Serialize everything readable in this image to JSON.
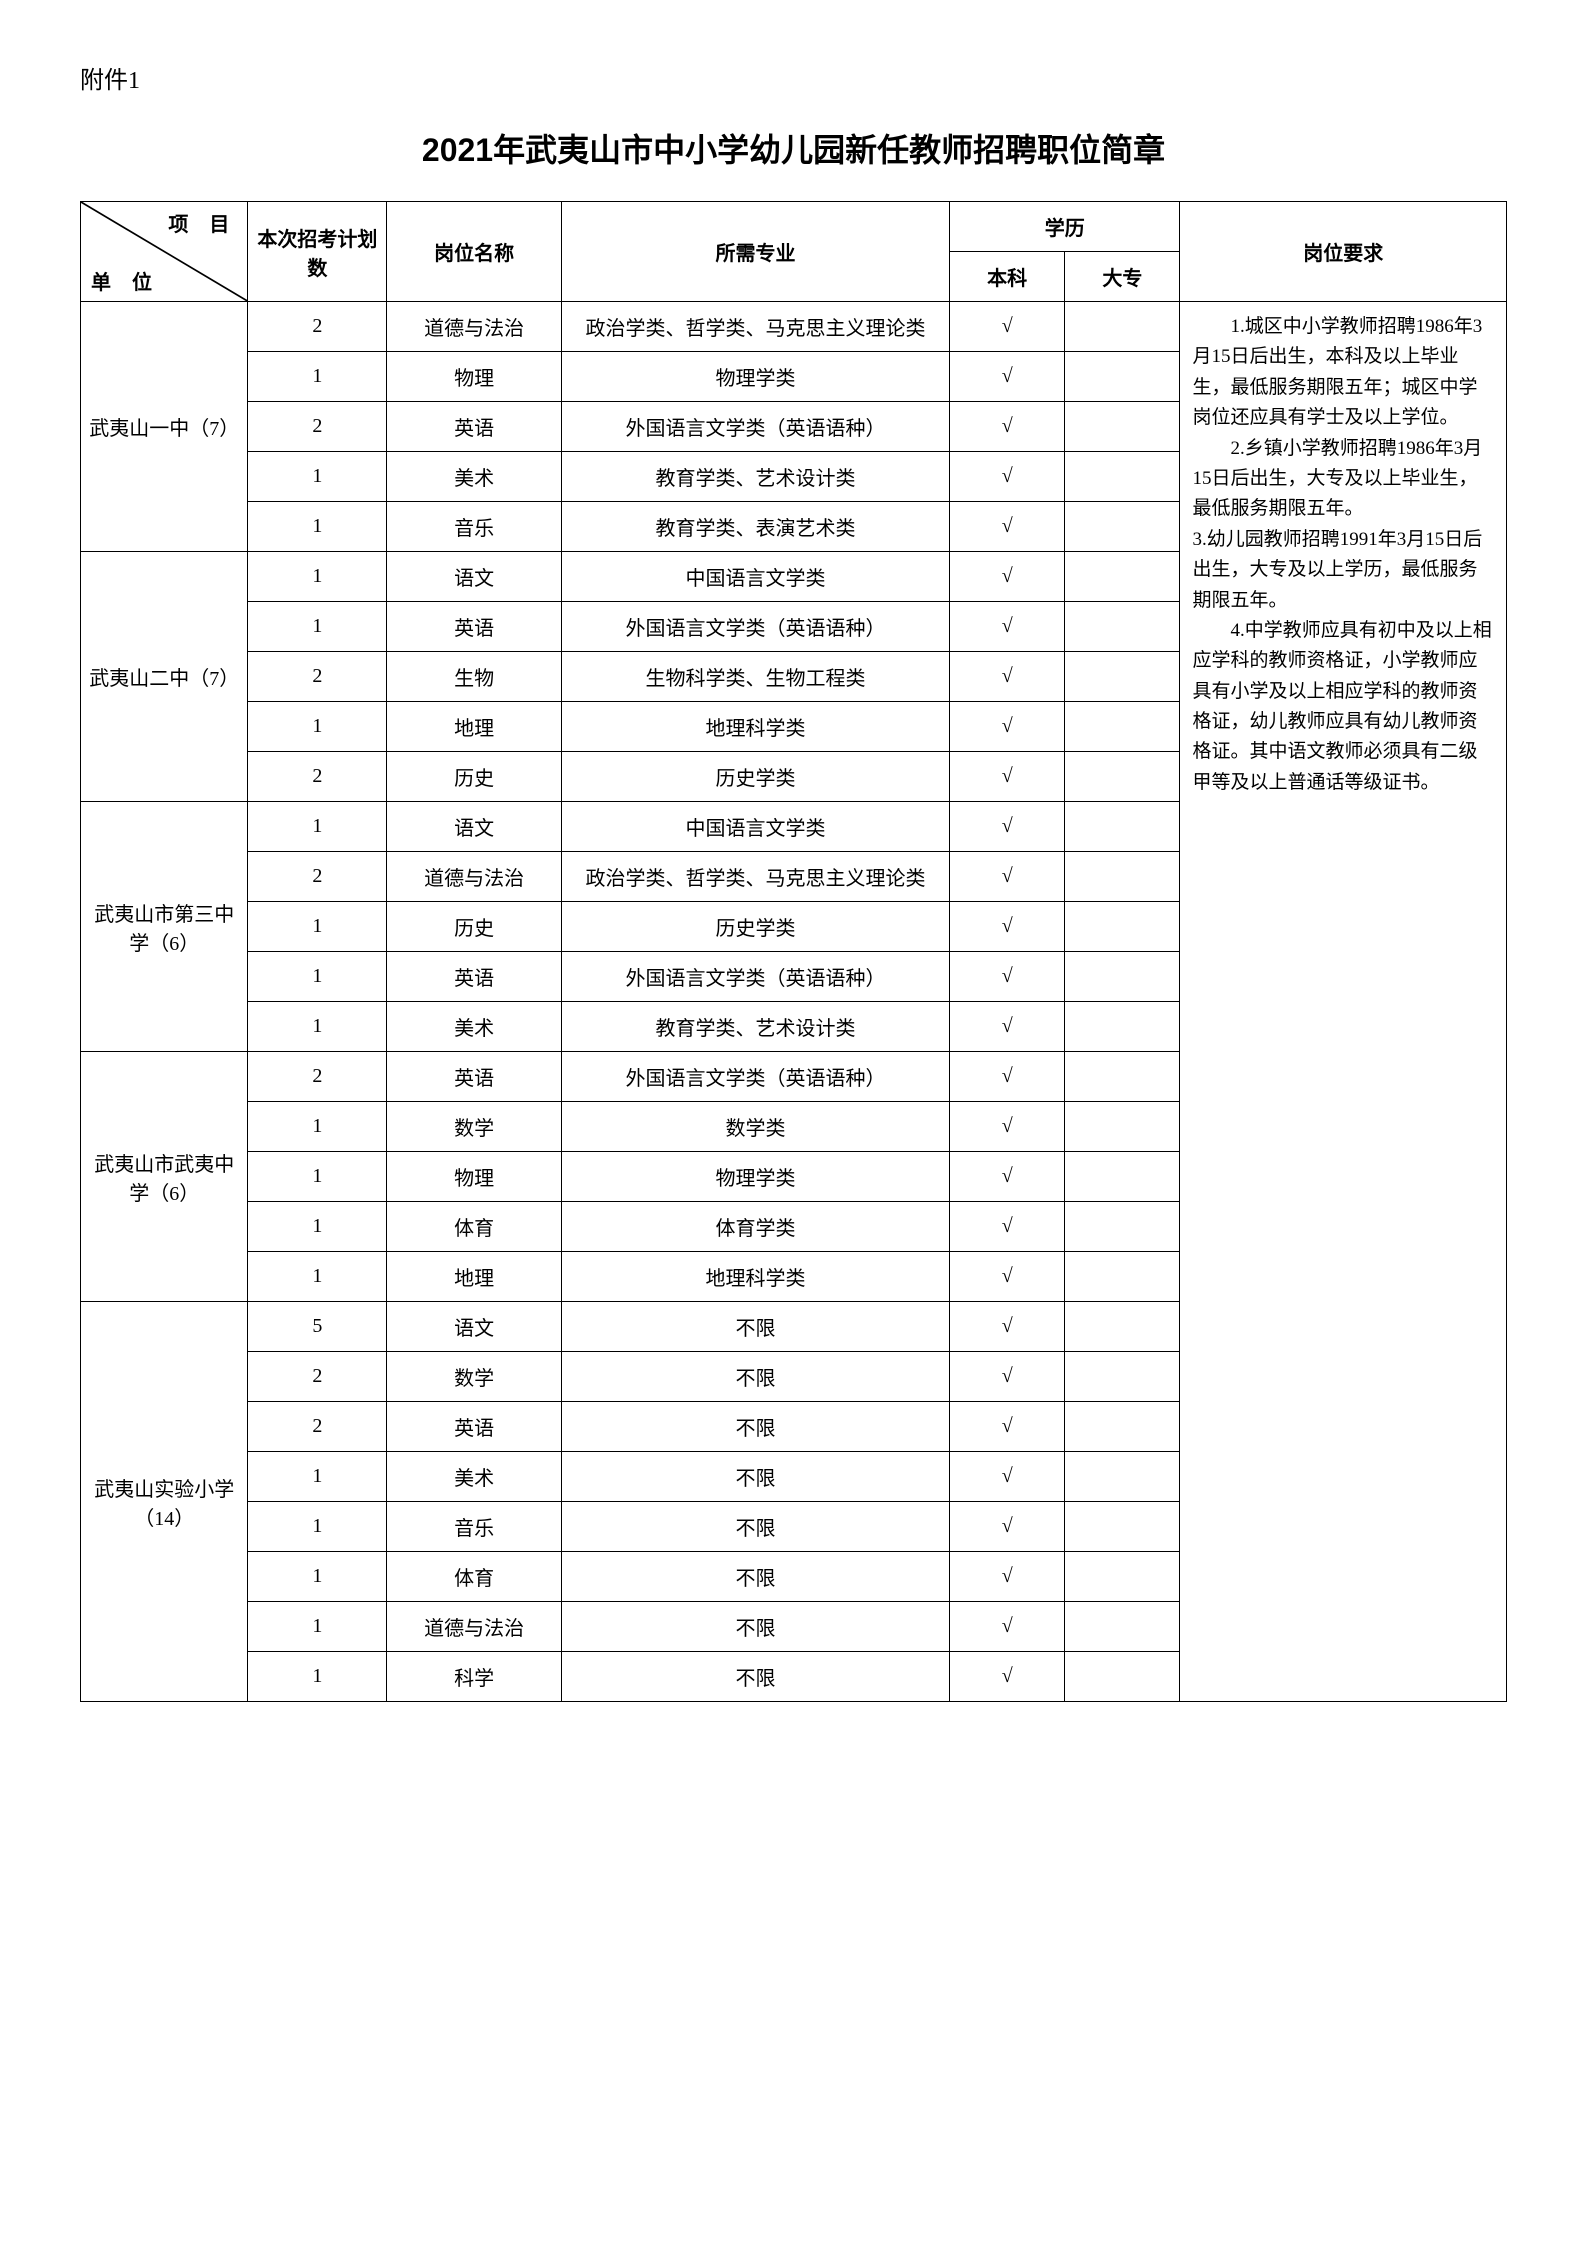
{
  "attachment": "附件1",
  "title": "2021年武夷山市中小学幼儿园新任教师招聘职位简章",
  "header": {
    "diag_top": "项 目",
    "diag_bottom": "单 位",
    "count": "本次招考计划数",
    "post": "岗位名称",
    "major": "所需专业",
    "edu": "学历",
    "bachelor": "本科",
    "college": "大专",
    "req": "岗位要求"
  },
  "check": "√",
  "units": [
    {
      "name": "武夷山一中（7）",
      "rows": [
        {
          "count": "2",
          "post": "道德与法治",
          "major": "政治学类、哲学类、马克思主义理论类",
          "b": "√",
          "c": ""
        },
        {
          "count": "1",
          "post": "物理",
          "major": "物理学类",
          "b": "√",
          "c": ""
        },
        {
          "count": "2",
          "post": "英语",
          "major": "外国语言文学类（英语语种）",
          "b": "√",
          "c": ""
        },
        {
          "count": "1",
          "post": "美术",
          "major": "教育学类、艺术设计类",
          "b": "√",
          "c": ""
        },
        {
          "count": "1",
          "post": "音乐",
          "major": "教育学类、表演艺术类",
          "b": "√",
          "c": ""
        }
      ]
    },
    {
      "name": "武夷山二中（7）",
      "rows": [
        {
          "count": "1",
          "post": "语文",
          "major": "中国语言文学类",
          "b": "√",
          "c": ""
        },
        {
          "count": "1",
          "post": "英语",
          "major": "外国语言文学类（英语语种）",
          "b": "√",
          "c": ""
        },
        {
          "count": "2",
          "post": "生物",
          "major": "生物科学类、生物工程类",
          "b": "√",
          "c": ""
        },
        {
          "count": "1",
          "post": "地理",
          "major": "地理科学类",
          "b": "√",
          "c": ""
        },
        {
          "count": "2",
          "post": "历史",
          "major": "历史学类",
          "b": "√",
          "c": ""
        }
      ]
    },
    {
      "name": "武夷山市第三中学（6）",
      "rows": [
        {
          "count": "1",
          "post": "语文",
          "major": "中国语言文学类",
          "b": "√",
          "c": ""
        },
        {
          "count": "2",
          "post": "道德与法治",
          "major": "政治学类、哲学类、马克思主义理论类",
          "b": "√",
          "c": ""
        },
        {
          "count": "1",
          "post": "历史",
          "major": "历史学类",
          "b": "√",
          "c": ""
        },
        {
          "count": "1",
          "post": "英语",
          "major": "外国语言文学类（英语语种）",
          "b": "√",
          "c": ""
        },
        {
          "count": "1",
          "post": "美术",
          "major": "教育学类、艺术设计类",
          "b": "√",
          "c": ""
        }
      ]
    },
    {
      "name": "武夷山市武夷中学（6）",
      "rows": [
        {
          "count": "2",
          "post": "英语",
          "major": "外国语言文学类（英语语种）",
          "b": "√",
          "c": ""
        },
        {
          "count": "1",
          "post": "数学",
          "major": "数学类",
          "b": "√",
          "c": ""
        },
        {
          "count": "1",
          "post": "物理",
          "major": "物理学类",
          "b": "√",
          "c": ""
        },
        {
          "count": "1",
          "post": "体育",
          "major": "体育学类",
          "b": "√",
          "c": ""
        },
        {
          "count": "1",
          "post": "地理",
          "major": "地理科学类",
          "b": "√",
          "c": ""
        }
      ]
    },
    {
      "name": "武夷山实验小学（14）",
      "rows": [
        {
          "count": "5",
          "post": "语文",
          "major": "不限",
          "b": "√",
          "c": ""
        },
        {
          "count": "2",
          "post": "数学",
          "major": "不限",
          "b": "√",
          "c": ""
        },
        {
          "count": "2",
          "post": "英语",
          "major": "不限",
          "b": "√",
          "c": ""
        },
        {
          "count": "1",
          "post": "美术",
          "major": "不限",
          "b": "√",
          "c": ""
        },
        {
          "count": "1",
          "post": "音乐",
          "major": "不限",
          "b": "√",
          "c": ""
        },
        {
          "count": "1",
          "post": "体育",
          "major": "不限",
          "b": "√",
          "c": ""
        },
        {
          "count": "1",
          "post": "道德与法治",
          "major": "不限",
          "b": "√",
          "c": ""
        },
        {
          "count": "1",
          "post": "科学",
          "major": "不限",
          "b": "√",
          "c": ""
        }
      ]
    }
  ],
  "requirements": {
    "p1": "1.城区中小学教师招聘1986年3月15日后出生，本科及以上毕业生，最低服务期限五年；城区中学岗位还应具有学士及以上学位。",
    "p2": "2.乡镇小学教师招聘1986年3月15日后出生，大专及以上毕业生，最低服务期限五年。",
    "p3a": "3.幼儿园教师招聘1991年3月15日后出生，大专及以上学历，最低服务期限五年。",
    "p4": "4.中学教师应具有初中及以上相应学科的教师资格证，小学教师应具有小学及以上相应学科的教师资格证，幼儿教师应具有幼儿教师资格证。其中语文教师必须具有二级甲等及以上普通话等级证书。"
  }
}
